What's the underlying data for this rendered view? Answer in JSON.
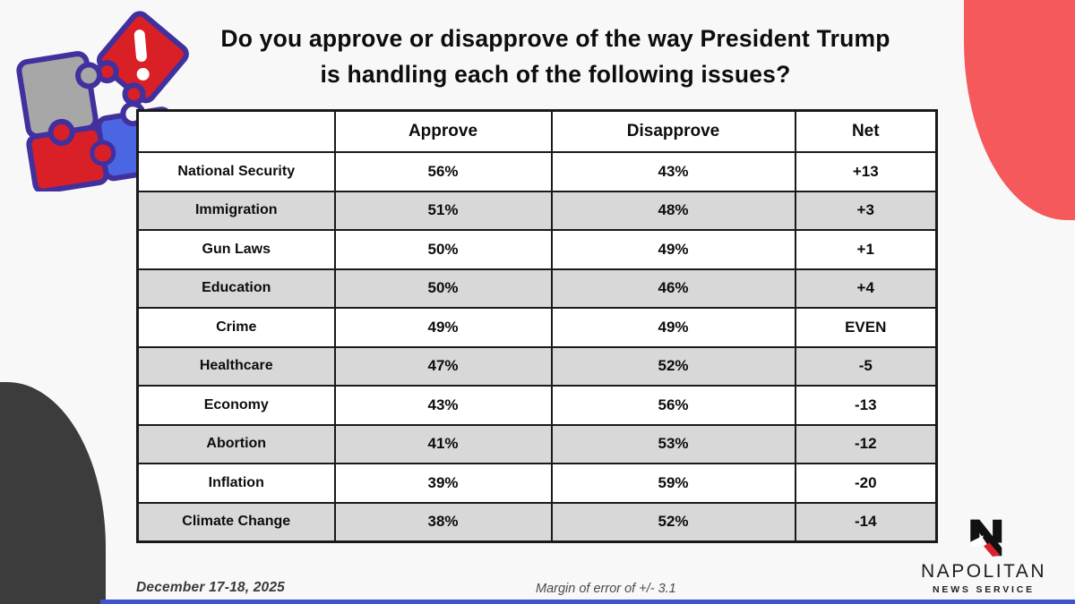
{
  "title": "Do you approve or disapprove of the way President Trump is handling each of the following issues?",
  "table": {
    "headers": [
      "",
      "Approve",
      "Disapprove",
      "Net"
    ],
    "rows": [
      {
        "issue": "National Security",
        "approve": "56%",
        "disapprove": "43%",
        "net": "+13",
        "net_type": "positive"
      },
      {
        "issue": "Immigration",
        "approve": "51%",
        "disapprove": "48%",
        "net": "+3",
        "net_type": "positive"
      },
      {
        "issue": "Gun Laws",
        "approve": "50%",
        "disapprove": "49%",
        "net": "+1",
        "net_type": "positive"
      },
      {
        "issue": "Education",
        "approve": "50%",
        "disapprove": "46%",
        "net": "+4",
        "net_type": "positive"
      },
      {
        "issue": "Crime",
        "approve": "49%",
        "disapprove": "49%",
        "net": "EVEN",
        "net_type": "even"
      },
      {
        "issue": "Healthcare",
        "approve": "47%",
        "disapprove": "52%",
        "net": "-5",
        "net_type": "negative"
      },
      {
        "issue": "Economy",
        "approve": "43%",
        "disapprove": "56%",
        "net": "-13",
        "net_type": "negative"
      },
      {
        "issue": "Abortion",
        "approve": "41%",
        "disapprove": "53%",
        "net": "-12",
        "net_type": "negative"
      },
      {
        "issue": "Inflation",
        "approve": "39%",
        "disapprove": "59%",
        "net": "-20",
        "net_type": "negative"
      },
      {
        "issue": "Climate Change",
        "approve": "38%",
        "disapprove": "52%",
        "net": "-14",
        "net_type": "negative"
      }
    ]
  },
  "footer": {
    "date": "December 17-18, 2025",
    "margin_of_error": "Margin of error of +/- 3.1"
  },
  "logo": {
    "name": "NAPOLITAN",
    "tagline": "NEWS SERVICE"
  },
  "colors": {
    "background": "#f8f8f8",
    "net_positive": "#17b45a",
    "net_negative": "#f83c3c",
    "net_even": "#0d0d0d",
    "row_alt_gray": "#d8d8d8",
    "table_border": "#1a1a1a",
    "red_blob": "#f5595c",
    "dark_blob": "#3c3c3c",
    "bottom_bar_blue": "#3d53cf",
    "puzzle_outline": "#41309e",
    "puzzle_gray": "#a7a7a7",
    "puzzle_red": "#da2027",
    "puzzle_blue": "#4b66e3",
    "logo_red": "#d8212b"
  },
  "icons": {
    "puzzle": "puzzle-pieces-alert-illustration",
    "logo_mark": "napolitan-n-eagle-logo"
  }
}
